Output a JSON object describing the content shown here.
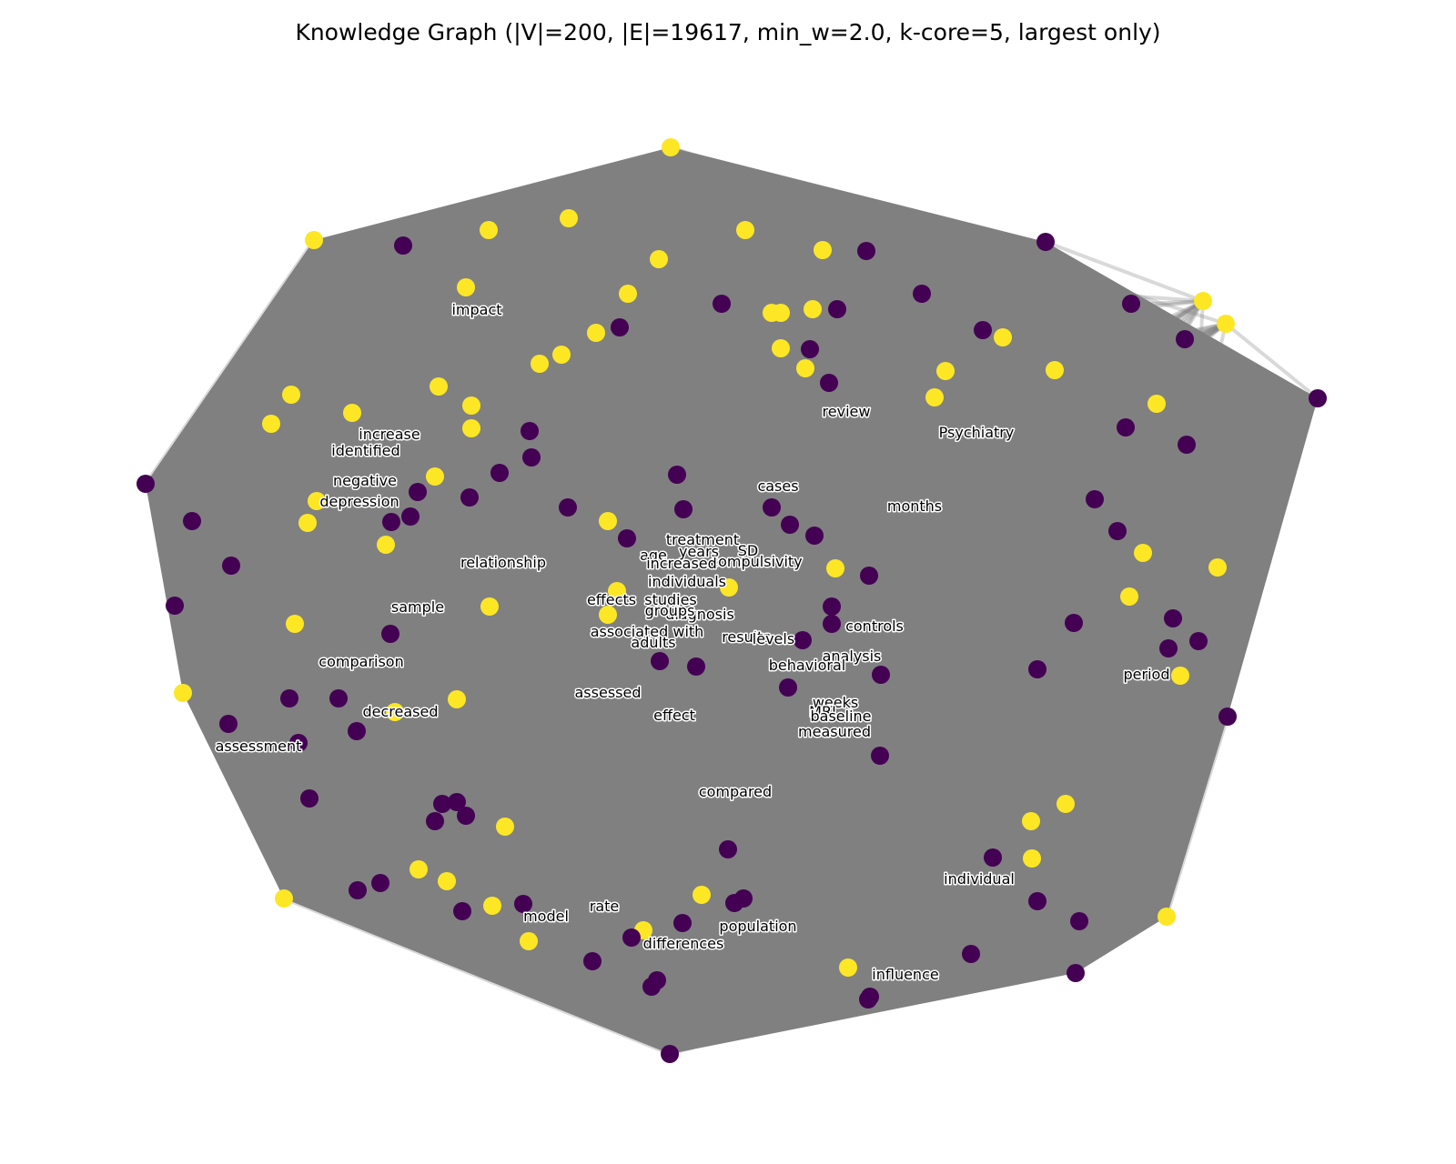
{
  "title": "Knowledge Graph (|V|=200, |E|=19617, min_w=2.0, k-core=5, largest only)",
  "colors": {
    "background": "#ffffff",
    "edge": "#808080",
    "community_0": "#440154",
    "community_1": "#fde725"
  },
  "labels": [
    "impact",
    "review",
    "Psychiatry",
    "increase",
    "identified",
    "negative",
    "depression",
    "cases",
    "months",
    "treatment",
    "age",
    "years",
    "SD",
    "compulsivity",
    "increased",
    "individuals",
    "relationship",
    "studies",
    "effects",
    "diagnosis",
    "groups",
    "sample",
    "associated with",
    "adults",
    "results",
    "levels",
    "controls",
    "comparison",
    "analysis",
    "behavioral",
    "period",
    "assessed",
    "weeks",
    "MRI",
    "baseline",
    "effect",
    "decreased",
    "measured",
    "assessment",
    "compared",
    "individual",
    "rate",
    "model",
    "population",
    "differences",
    "influence"
  ]
}
